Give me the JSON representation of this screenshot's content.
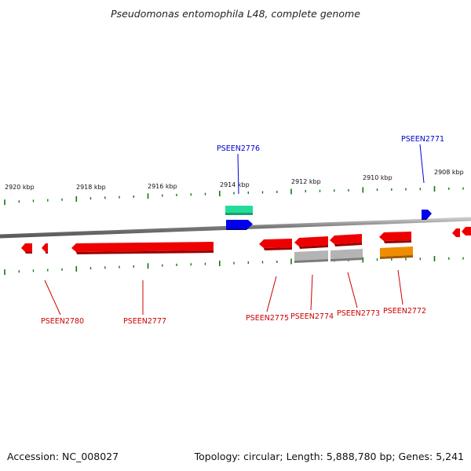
{
  "header": {
    "title": "Pseudomonas entomophila L48, complete genome"
  },
  "footer": {
    "accession": "Accession: NC_008027",
    "summary": "Topology: circular; Length: 5,888,780 bp; Genes: 5,241"
  },
  "scale": {
    "unit": "kbp",
    "labels": [
      "2920 kbp",
      "2918 kbp",
      "2916 kbp",
      "2914 kbp",
      "2912 kbp",
      "2910 kbp",
      "2908 kbp"
    ]
  },
  "colors": {
    "reverse_gene": "#ee0000",
    "forward_gene": "#0000ee",
    "rna": "#22dd99",
    "grey_feature": "#b4b4b4",
    "orange_feature": "#f08c00",
    "tick": "#117711",
    "backbone": "#808080"
  },
  "genes": {
    "top": [
      {
        "label": "PSEEN2776",
        "color": "#0000cc"
      },
      {
        "label": "PSEEN2771",
        "color": "#0000cc"
      }
    ],
    "bottom": [
      {
        "label": "PSEEN2780",
        "color": "#cc0000"
      },
      {
        "label": "PSEEN2777",
        "color": "#cc0000"
      },
      {
        "label": "PSEEN2775",
        "color": "#cc0000"
      },
      {
        "label": "PSEEN2774",
        "color": "#cc0000"
      },
      {
        "label": "PSEEN2773",
        "color": "#cc0000"
      },
      {
        "label": "PSEEN2772",
        "color": "#cc0000"
      }
    ]
  }
}
